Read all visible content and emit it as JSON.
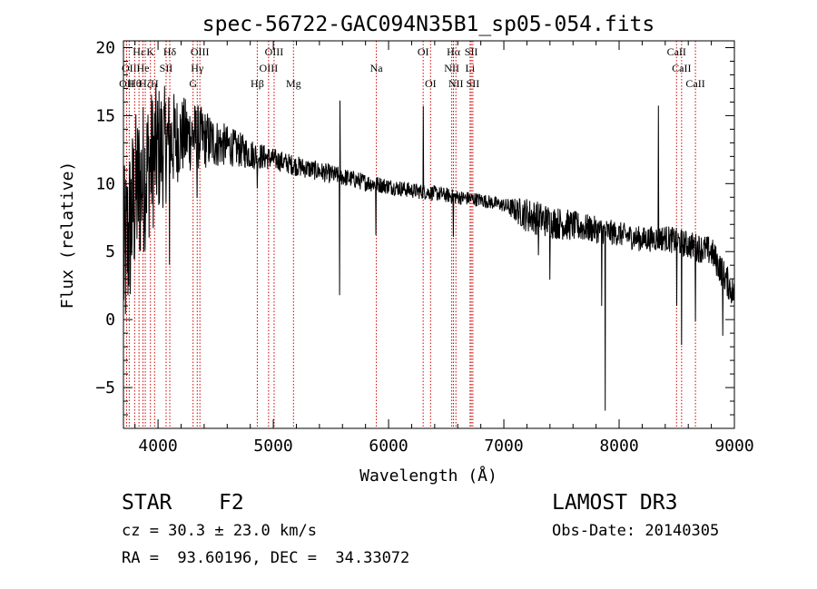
{
  "chart_data": {
    "type": "line",
    "title": "spec-56722-GAC094N35B1_sp05-054.fits",
    "xlabel": "Wavelength (Å)",
    "ylabel": "Flux (relative)",
    "xlim": [
      3700,
      9000
    ],
    "ylim": [
      -8,
      20.5
    ],
    "x_ticks": [
      4000,
      5000,
      6000,
      7000,
      8000,
      9000
    ],
    "x_tick_labels": [
      "4000",
      "5000",
      "6000",
      "7000",
      "8000",
      "9000"
    ],
    "y_ticks": [
      -5,
      0,
      5,
      10,
      15,
      20
    ],
    "y_tick_labels": [
      "−5",
      "0",
      "5",
      "10",
      "15",
      "20"
    ],
    "continuum": {
      "x": [
        3700,
        3800,
        3900,
        4000,
        4100,
        4200,
        4300,
        4400,
        4500,
        4600,
        4700,
        4800,
        4900,
        5000,
        5200,
        5400,
        5600,
        5800,
        6000,
        6200,
        6400,
        6600,
        6800,
        7000,
        7200,
        7400,
        7600,
        7800,
        8000,
        8200,
        8400,
        8600,
        8800,
        9000
      ],
      "y": [
        4,
        9,
        11,
        12.5,
        13,
        13.5,
        13.5,
        13.3,
        13,
        12.8,
        12.5,
        12.2,
        12,
        11.8,
        11.3,
        10.9,
        10.5,
        10.1,
        9.8,
        9.5,
        9.3,
        9,
        8.8,
        8.4,
        7.7,
        7.2,
        6.9,
        6.6,
        6.3,
        5.9,
        6,
        5.5,
        5,
        1.8
      ]
    },
    "noise_level": {
      "x": [
        3700,
        4000,
        4200,
        4600,
        5000,
        6000,
        7000,
        7200,
        7500,
        7800,
        8000,
        8500,
        9000
      ],
      "y": [
        7,
        5,
        3,
        1.5,
        0.8,
        0.6,
        0.5,
        1.3,
        1.2,
        1,
        0.9,
        1,
        1.2
      ]
    },
    "features": [
      {
        "x": 4100,
        "dy": -6
      },
      {
        "x": 4340,
        "dy": -4
      },
      {
        "x": 4861,
        "dy": -3
      },
      {
        "x": 5575,
        "dy": -9
      },
      {
        "x": 5577,
        "dy": 5
      },
      {
        "x": 5890,
        "dy": -3.5
      },
      {
        "x": 6300,
        "dy": 6
      },
      {
        "x": 6563,
        "dy": -3
      },
      {
        "x": 7300,
        "dy": -3
      },
      {
        "x": 7400,
        "dy": -3.5
      },
      {
        "x": 7850,
        "dy": -6
      },
      {
        "x": 7880,
        "dy": -13.5
      },
      {
        "x": 8340,
        "dy": 10
      },
      {
        "x": 8500,
        "dy": -5
      },
      {
        "x": 8542,
        "dy": -8
      },
      {
        "x": 8662,
        "dy": -5
      },
      {
        "x": 8900,
        "dy": -5
      }
    ],
    "line_markers": [
      {
        "x": 3727,
        "label": "OII",
        "row": 2
      },
      {
        "x": 3750,
        "label": "OII",
        "row": 1
      },
      {
        "x": 3797,
        "label": "Hθ",
        "row": 2
      },
      {
        "x": 3835,
        "label": "Hε",
        "row": 0
      },
      {
        "x": 3869,
        "label": "He",
        "row": 1
      },
      {
        "x": 3889,
        "label": "Hζ",
        "row": 2
      },
      {
        "x": 3934,
        "label": "K",
        "row": 0
      },
      {
        "x": 3970,
        "label": "H",
        "row": 2
      },
      {
        "x": 4070,
        "label": "SII",
        "row": 1
      },
      {
        "x": 4102,
        "label": "Hδ",
        "row": 0
      },
      {
        "x": 4304,
        "label": "G",
        "row": 2
      },
      {
        "x": 4340,
        "label": "Hγ",
        "row": 1
      },
      {
        "x": 4363,
        "label": "OIII",
        "row": 0
      },
      {
        "x": 4861,
        "label": "Hβ",
        "row": 2
      },
      {
        "x": 4959,
        "label": "OIII",
        "row": 1
      },
      {
        "x": 5007,
        "label": "OIII",
        "row": 0
      },
      {
        "x": 5175,
        "label": "Mg",
        "row": 2
      },
      {
        "x": 5894,
        "label": "Na",
        "row": 1
      },
      {
        "x": 6300,
        "label": "OI",
        "row": 0
      },
      {
        "x": 6364,
        "label": "OI",
        "row": 2
      },
      {
        "x": 6548,
        "label": "NII",
        "row": 1
      },
      {
        "x": 6563,
        "label": "Hα",
        "row": 0
      },
      {
        "x": 6584,
        "label": "NII",
        "row": 2
      },
      {
        "x": 6707,
        "label": "Li",
        "row": 1
      },
      {
        "x": 6717,
        "label": "SII",
        "row": 0
      },
      {
        "x": 6731,
        "label": "SII",
        "row": 2
      },
      {
        "x": 8498,
        "label": "CaII",
        "row": 0
      },
      {
        "x": 8542,
        "label": "CaII",
        "row": 1
      },
      {
        "x": 8662,
        "label": "CaII",
        "row": 2
      }
    ]
  },
  "info": {
    "object_class": "STAR",
    "subclass": "F2",
    "survey": "LAMOST DR3",
    "redshift": "cz = 30.3 ± 23.0 km/s",
    "obs_date": "Obs-Date: 20140305",
    "coords": "RA =  93.60196, DEC =  34.33072"
  },
  "colors": {
    "spectrum": "#000000",
    "marker_line": "#cc0000",
    "background": "#ffffff"
  }
}
